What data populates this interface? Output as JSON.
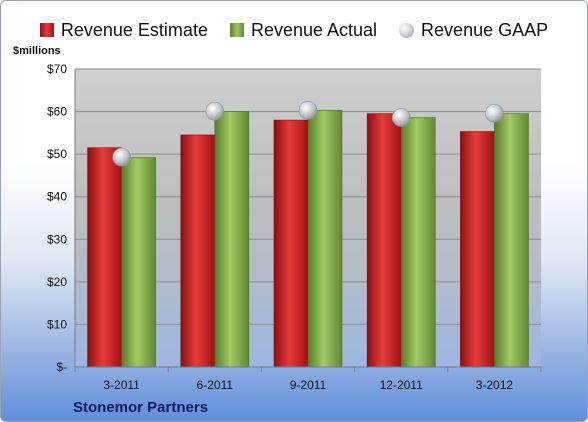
{
  "chart_data": {
    "type": "bar",
    "title": "",
    "ylabel": "$millions",
    "xlabel": "",
    "ylim": [
      0,
      70
    ],
    "yticks": [
      0,
      10,
      20,
      30,
      40,
      50,
      60,
      70
    ],
    "ytick_labels": [
      "$-",
      "$10",
      "$20",
      "$30",
      "$40",
      "$50",
      "$60",
      "$70"
    ],
    "categories": [
      "3-2011",
      "6-2011",
      "9-2011",
      "12-2011",
      "3-2012"
    ],
    "series": [
      {
        "name": "Revenue Estimate",
        "kind": "bar",
        "color": "#cc1f1f",
        "values": [
          51.5,
          54.5,
          58.0,
          59.5,
          55.3
        ]
      },
      {
        "name": "Revenue Actual",
        "kind": "bar",
        "color": "#7fa845",
        "values": [
          49.2,
          60.0,
          60.3,
          58.6,
          59.5
        ]
      },
      {
        "name": "Revenue GAAP",
        "kind": "marker",
        "color": "#c9ccd2",
        "values": [
          49.3,
          60.1,
          60.3,
          58.6,
          59.6
        ]
      }
    ],
    "legend_position": "top",
    "grid": true,
    "company": "Stonemor Partners"
  }
}
